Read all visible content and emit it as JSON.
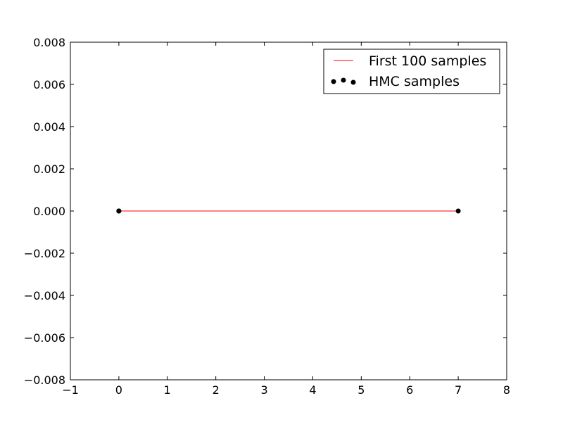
{
  "chart_data": {
    "type": "scatter",
    "xlim": [
      -1,
      8
    ],
    "ylim": [
      -0.008,
      0.008
    ],
    "x_ticks": [
      -1,
      0,
      1,
      2,
      3,
      4,
      5,
      6,
      7,
      8
    ],
    "x_tick_labels": [
      "−1",
      "0",
      "1",
      "2",
      "3",
      "4",
      "5",
      "6",
      "7",
      "8"
    ],
    "y_ticks": [
      0.008,
      0.006,
      0.004,
      0.002,
      0.0,
      -0.002,
      -0.004,
      -0.006,
      -0.008
    ],
    "y_tick_labels": [
      "0.008",
      "0.006",
      "0.004",
      "0.002",
      "0.000",
      "−0.002",
      "−0.004",
      "−0.006",
      "−0.008"
    ],
    "grid": false,
    "legend_position": "top-right",
    "colors": {
      "line": "#ff0000",
      "points": "#000000",
      "frame": "#000000"
    },
    "series": [
      {
        "name": "First 100 samples",
        "kind": "line",
        "x": [
          0,
          7
        ],
        "y": [
          0,
          0
        ]
      },
      {
        "name": "HMC samples",
        "kind": "scatter",
        "x": [
          0,
          0,
          0,
          7
        ],
        "y": [
          0,
          0,
          0,
          0
        ]
      }
    ]
  }
}
